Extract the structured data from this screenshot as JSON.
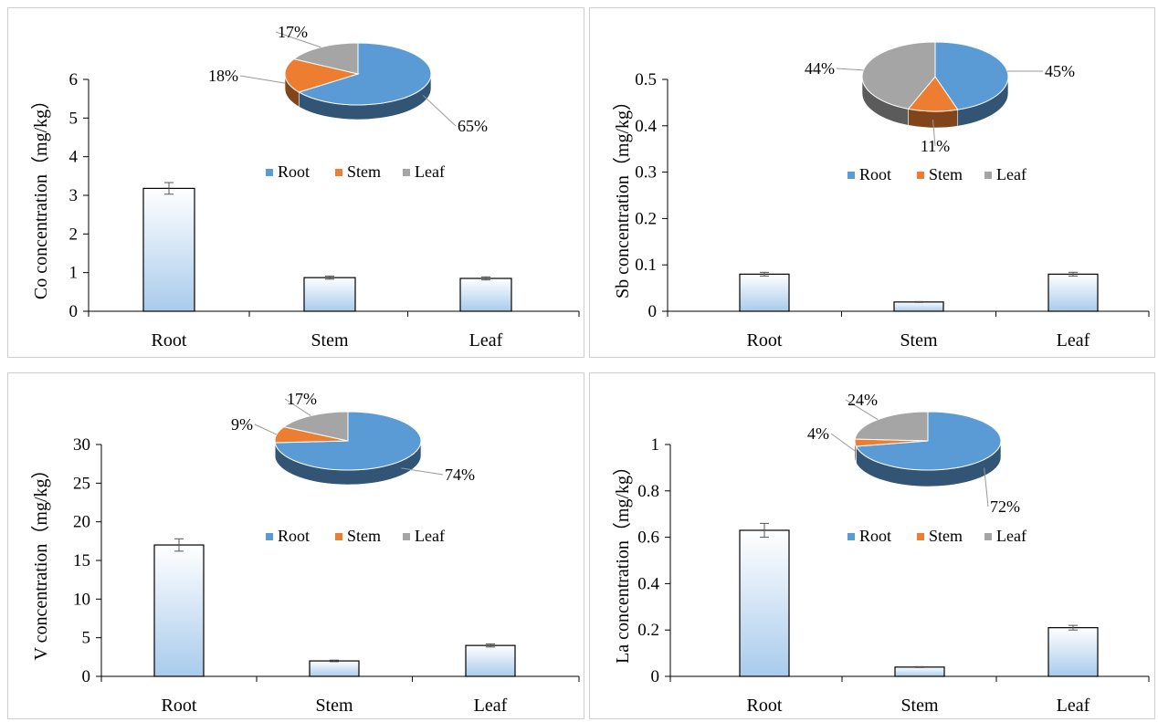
{
  "colors": {
    "root": "#5b9bd5",
    "stem": "#ed7d31",
    "leaf": "#a5a5a5",
    "bar_top": "#ffffff",
    "bar_bottom": "#a9cbec"
  },
  "legend": [
    "Root",
    "Stem",
    "Leaf"
  ],
  "chart_data": [
    {
      "type": "bar",
      "ylabel": "Co concentration（mg/kg）",
      "categories": [
        "Root",
        "Stem",
        "Leaf"
      ],
      "values": [
        3.18,
        0.87,
        0.85
      ],
      "errors": [
        0.15,
        0.04,
        0.04
      ],
      "ylim": [
        0,
        6
      ],
      "yticks": [
        "0",
        "1",
        "2",
        "3",
        "4",
        "5",
        "6"
      ],
      "pie": {
        "labels": [
          "Root",
          "Stem",
          "Leaf"
        ],
        "values": [
          65,
          18,
          17
        ],
        "label_text": [
          "65%",
          "18%",
          "17%"
        ]
      }
    },
    {
      "type": "bar",
      "ylabel": "Sb concentration（mg/kg）",
      "categories": [
        "Root",
        "Stem",
        "Leaf"
      ],
      "values": [
        0.08,
        0.02,
        0.08
      ],
      "errors": [
        0.004,
        0.001,
        0.004
      ],
      "ylim": [
        0,
        0.5
      ],
      "yticks": [
        "0",
        "0.1",
        "0.2",
        "0.3",
        "0.4",
        "0.5"
      ],
      "pie": {
        "labels": [
          "Root",
          "Stem",
          "Leaf"
        ],
        "values": [
          45,
          11,
          44
        ],
        "label_text": [
          "45%",
          "11%",
          "44%"
        ]
      }
    },
    {
      "type": "bar",
      "ylabel": "V concentration（mg/kg）",
      "categories": [
        "Root",
        "Stem",
        "Leaf"
      ],
      "values": [
        17.0,
        2.0,
        4.0
      ],
      "errors": [
        0.8,
        0.1,
        0.2
      ],
      "ylim": [
        0,
        30
      ],
      "yticks": [
        "0",
        "5",
        "10",
        "15",
        "20",
        "25",
        "30"
      ],
      "pie": {
        "labels": [
          "Root",
          "Stem",
          "Leaf"
        ],
        "values": [
          74,
          9,
          17
        ],
        "label_text": [
          "74%",
          "9%",
          "17%"
        ]
      }
    },
    {
      "type": "bar",
      "ylabel": "La concentration（mg/kg）",
      "categories": [
        "Root",
        "Stem",
        "Leaf"
      ],
      "values": [
        0.63,
        0.04,
        0.21
      ],
      "errors": [
        0.03,
        0.002,
        0.01
      ],
      "ylim": [
        0,
        1
      ],
      "yticks": [
        "0",
        "0.2",
        "0.4",
        "0.6",
        "0.8",
        "1"
      ],
      "pie": {
        "labels": [
          "Root",
          "Stem",
          "Leaf"
        ],
        "values": [
          72,
          4,
          24
        ],
        "label_text": [
          "72%",
          "4%",
          "24%"
        ]
      }
    }
  ]
}
